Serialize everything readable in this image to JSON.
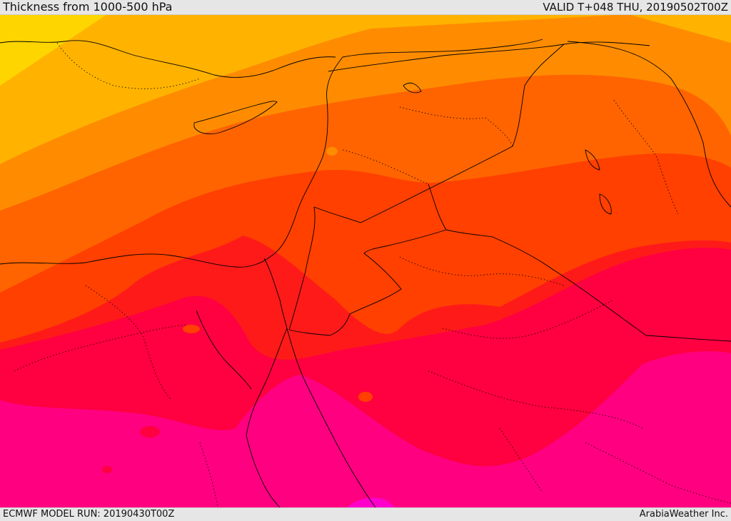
{
  "header": {
    "title": "Thickness from 1000-500 hPa",
    "valid": "VALID T+048 THU, 20190502T00Z"
  },
  "footer": {
    "model_run": "ECMWF MODEL RUN: 20190430T00Z",
    "credit": "ArabiaWeather Inc."
  },
  "map": {
    "field": "1000-500 hPa thickness",
    "palette": {
      "band_1": "#ffd500",
      "band_2": "#ffb300",
      "band_3": "#ff8c00",
      "band_4": "#ff6400",
      "band_5": "#ff4000",
      "band_6": "#ff1a1a",
      "band_7": "#ff0040",
      "band_8": "#ff0080",
      "band_9": "#ff00cc"
    },
    "border_color": "#000000"
  }
}
